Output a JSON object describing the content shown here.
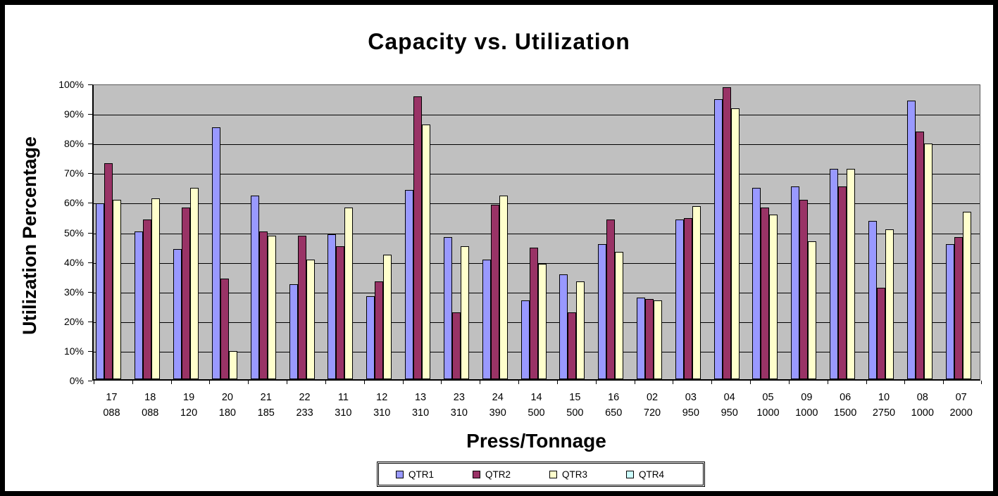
{
  "chart_data": {
    "type": "bar",
    "title": "Capacity vs. Utilization",
    "xlabel": "Press/Tonnage",
    "ylabel": "Utilization Percentage",
    "ylim": [
      0,
      100
    ],
    "yticks": [
      0,
      10,
      20,
      30,
      40,
      50,
      60,
      70,
      80,
      90,
      100
    ],
    "ytick_suffix": "%",
    "grid": "horizontal-black",
    "plot_background": "#C0C0C0",
    "legend_position": "bottom-center",
    "categories": [
      {
        "press": "17",
        "tonnage": "088"
      },
      {
        "press": "18",
        "tonnage": "088"
      },
      {
        "press": "19",
        "tonnage": "120"
      },
      {
        "press": "20",
        "tonnage": "180"
      },
      {
        "press": "21",
        "tonnage": "185"
      },
      {
        "press": "22",
        "tonnage": "233"
      },
      {
        "press": "11",
        "tonnage": "310"
      },
      {
        "press": "12",
        "tonnage": "310"
      },
      {
        "press": "13",
        "tonnage": "310"
      },
      {
        "press": "23",
        "tonnage": "310"
      },
      {
        "press": "24",
        "tonnage": "390"
      },
      {
        "press": "14",
        "tonnage": "500"
      },
      {
        "press": "15",
        "tonnage": "500"
      },
      {
        "press": "16",
        "tonnage": "650"
      },
      {
        "press": "02",
        "tonnage": "720"
      },
      {
        "press": "03",
        "tonnage": "950"
      },
      {
        "press": "04",
        "tonnage": "950"
      },
      {
        "press": "05",
        "tonnage": "1000"
      },
      {
        "press": "09",
        "tonnage": "1000"
      },
      {
        "press": "06",
        "tonnage": "1500"
      },
      {
        "press": "10",
        "tonnage": "2750"
      },
      {
        "press": "08",
        "tonnage": "1000"
      },
      {
        "press": "07",
        "tonnage": "2000"
      }
    ],
    "series": [
      {
        "name": "QTR1",
        "color": "#9999FF",
        "values": [
          59.5,
          50,
          44,
          85,
          62,
          32,
          49,
          28,
          64,
          48,
          40.5,
          26.5,
          35.5,
          45.5,
          27.5,
          54,
          94.5,
          64.5,
          65,
          71,
          53.5,
          94,
          45.5
        ]
      },
      {
        "name": "QTR2",
        "color": "#993366",
        "values": [
          73,
          54,
          58,
          34,
          50,
          48.5,
          45,
          33,
          95.5,
          22.5,
          59,
          44.5,
          22.5,
          54,
          27,
          54.5,
          98.5,
          58,
          60.5,
          65,
          31,
          83.5,
          48
        ]
      },
      {
        "name": "QTR3",
        "color": "#FFFFCC",
        "values": [
          60.5,
          61,
          64.5,
          9.5,
          48.5,
          40.5,
          58,
          42,
          86,
          45,
          62,
          39,
          33,
          43,
          26.5,
          58.5,
          91.5,
          55.5,
          46.5,
          71,
          50.5,
          79.5,
          56.5
        ]
      },
      {
        "name": "QTR4",
        "color": "#CCFFFF",
        "values": [
          0,
          0,
          0,
          0,
          0,
          0,
          0,
          0,
          0,
          0,
          0,
          0,
          0,
          0,
          0,
          0,
          0,
          0,
          0,
          0,
          0,
          0,
          0
        ]
      }
    ]
  }
}
